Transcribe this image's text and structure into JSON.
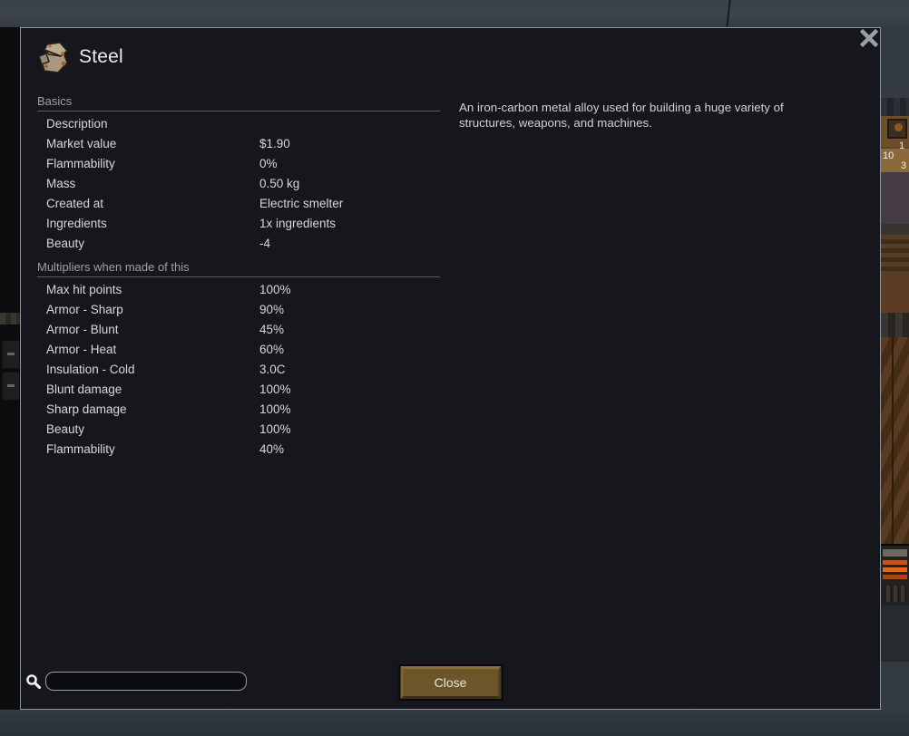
{
  "window": {
    "title": "Steel"
  },
  "sections": [
    {
      "title": "Basics",
      "rows": [
        {
          "label": "Description",
          "value": ""
        },
        {
          "label": "Market value",
          "value": "$1.90"
        },
        {
          "label": "Flammability",
          "value": "0%"
        },
        {
          "label": "Mass",
          "value": "0.50 kg"
        },
        {
          "label": "Created at",
          "value": "Electric smelter"
        },
        {
          "label": "Ingredients",
          "value": "1x ingredients"
        },
        {
          "label": "Beauty",
          "value": "-4"
        }
      ]
    },
    {
      "title": "Multipliers when made of this",
      "rows": [
        {
          "label": "Max hit points",
          "value": "100%"
        },
        {
          "label": "Armor - Sharp",
          "value": "90%"
        },
        {
          "label": "Armor - Blunt",
          "value": "45%"
        },
        {
          "label": "Armor - Heat",
          "value": "60%"
        },
        {
          "label": "Insulation - Cold",
          "value": "3.0C"
        },
        {
          "label": "Blunt damage",
          "value": "100%"
        },
        {
          "label": "Sharp damage",
          "value": "100%"
        },
        {
          "label": "Beauty",
          "value": "100%"
        },
        {
          "label": "Flammability",
          "value": "40%"
        }
      ]
    }
  ],
  "description": "An iron-carbon metal alloy used for building a huge variety of structures, weapons, and machines.",
  "footer": {
    "search_value": "",
    "close_label": "Close"
  },
  "background": {
    "shelf_counts": [
      "1",
      "10",
      "3"
    ]
  },
  "colors": {
    "dialog_bg": "#15171d",
    "dialog_border": "#8d949c",
    "button_brown": "#6b5529",
    "heater_orange": "#e0661e",
    "text": "#d8d8d8",
    "section_header": "#9fa0a2"
  }
}
